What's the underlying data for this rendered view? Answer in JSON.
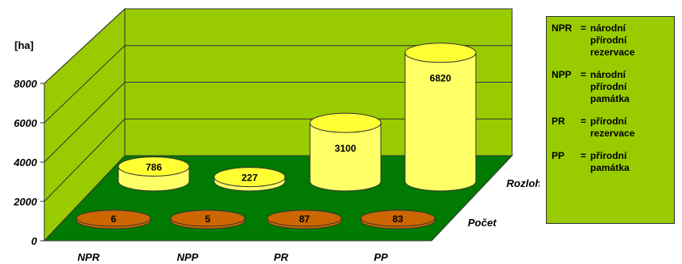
{
  "chart_data": {
    "type": "bar",
    "variant": "3d-cylinder",
    "title": "",
    "ylabel": "[ha]",
    "ylim": [
      0,
      8000
    ],
    "yticks": [
      0,
      2000,
      4000,
      6000,
      8000
    ],
    "categories": [
      "NPR",
      "NPP",
      "PR",
      "PP"
    ],
    "series": [
      {
        "name": "Rozloha",
        "values": [
          786,
          227,
          3100,
          6820
        ],
        "color": "#ffff66"
      },
      {
        "name": "Počet",
        "values": [
          6,
          5,
          87,
          83
        ],
        "color": "#cc6600"
      }
    ],
    "walls_color": "#99cc00",
    "floor_color": "#007a00",
    "grid": true
  },
  "legend": {
    "items": [
      {
        "code": "NPR",
        "eq": "=",
        "desc": "národní přírodní rezervace"
      },
      {
        "code": "NPP",
        "eq": "=",
        "desc": "národní přírodní památka"
      },
      {
        "code": "PR",
        "eq": "=",
        "desc": "přírodní rezervace"
      },
      {
        "code": "PP",
        "eq": "=",
        "desc": "přírodní památka"
      }
    ]
  }
}
